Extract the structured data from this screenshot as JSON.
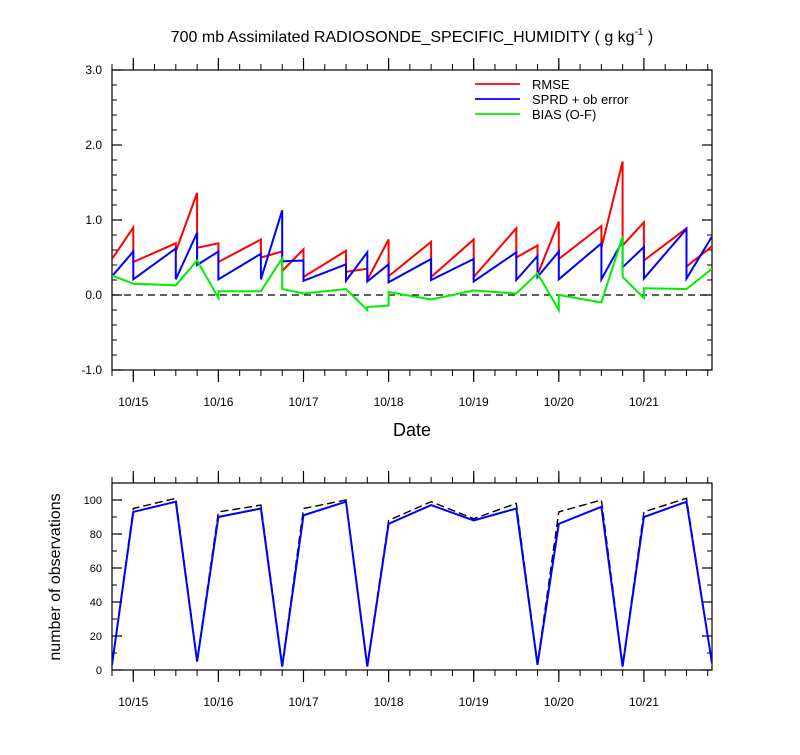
{
  "chart_data": [
    {
      "type": "line",
      "title": "700 mb Assimilated RADIOSONDE_SPECIFIC_HUMIDITY ( g kg",
      "title_sup": "-1",
      "title_end": " )",
      "xlabel": "Date",
      "ylabel": "",
      "xlim": [
        14.75,
        21.8
      ],
      "ylim": [
        -1.0,
        3.0
      ],
      "yticks": [
        -1.0,
        0.0,
        1.0,
        2.0,
        3.0
      ],
      "ytick_labels": [
        "-1.0",
        "0.0",
        "1.0",
        "2.0",
        "3.0"
      ],
      "xticks": [
        15,
        16,
        17,
        18,
        19,
        20,
        21
      ],
      "xtick_labels": [
        "10/15",
        "10/16",
        "10/17",
        "10/18",
        "10/19",
        "10/20",
        "10/21"
      ],
      "zero_line": {
        "y": 0.0,
        "style": "dashed"
      },
      "grid": false,
      "legend": {
        "position": "top-right"
      },
      "series": [
        {
          "name": "RMSE",
          "color": "#ff0000",
          "x": [
            14.75,
            15.0,
            15.0,
            15.5,
            15.5,
            15.75,
            15.75,
            16.0,
            16.0,
            16.5,
            16.5,
            16.75,
            16.75,
            17.0,
            17.0,
            17.5,
            17.5,
            17.75,
            17.75,
            18.0,
            18.0,
            18.5,
            18.5,
            19.0,
            19.0,
            19.5,
            19.5,
            19.75,
            19.75,
            20.0,
            20.0,
            20.5,
            20.5,
            20.75,
            20.75,
            21.0,
            21.0,
            21.5,
            21.5,
            21.8
          ],
          "y": [
            0.48,
            0.9,
            0.44,
            0.69,
            0.58,
            1.36,
            0.63,
            0.69,
            0.44,
            0.74,
            0.5,
            0.58,
            0.32,
            0.61,
            0.24,
            0.59,
            0.31,
            0.35,
            0.2,
            0.74,
            0.25,
            0.71,
            0.24,
            0.74,
            0.24,
            0.89,
            0.5,
            0.66,
            0.27,
            0.98,
            0.48,
            0.92,
            0.63,
            1.78,
            0.66,
            0.97,
            0.46,
            0.89,
            0.38,
            0.65
          ]
        },
        {
          "name": "SPRD + ob error",
          "color": "#0000ff",
          "x": [
            14.75,
            15.0,
            15.0,
            15.5,
            15.5,
            15.75,
            15.75,
            16.0,
            16.0,
            16.5,
            16.5,
            16.75,
            16.75,
            17.0,
            17.0,
            17.5,
            17.5,
            17.75,
            17.75,
            18.0,
            18.0,
            18.5,
            18.5,
            19.0,
            19.0,
            19.5,
            19.5,
            19.75,
            19.75,
            20.0,
            20.0,
            20.5,
            20.5,
            20.75,
            20.75,
            21.0,
            21.0,
            21.5,
            21.5,
            21.8
          ],
          "y": [
            0.25,
            0.58,
            0.21,
            0.62,
            0.21,
            0.83,
            0.4,
            0.58,
            0.21,
            0.55,
            0.21,
            1.13,
            0.45,
            0.46,
            0.19,
            0.41,
            0.19,
            0.57,
            0.18,
            0.41,
            0.17,
            0.48,
            0.2,
            0.48,
            0.18,
            0.57,
            0.2,
            0.52,
            0.24,
            0.58,
            0.21,
            0.69,
            0.21,
            0.72,
            0.37,
            0.64,
            0.22,
            0.88,
            0.22,
            0.78
          ]
        },
        {
          "name": "BIAS (O-F)",
          "color": "#00ee00",
          "x": [
            14.75,
            15.0,
            15.5,
            15.75,
            16.0,
            16.0,
            16.5,
            16.75,
            16.75,
            17.0,
            17.5,
            17.75,
            17.75,
            18.0,
            18.0,
            18.5,
            19.0,
            19.5,
            19.75,
            20.0,
            20.0,
            20.5,
            20.75,
            20.75,
            21.0,
            21.0,
            21.5,
            21.8
          ],
          "y": [
            0.26,
            0.15,
            0.13,
            0.46,
            -0.04,
            0.05,
            0.05,
            0.49,
            0.08,
            0.02,
            0.08,
            -0.2,
            -0.16,
            -0.14,
            0.04,
            -0.06,
            0.06,
            0.02,
            0.29,
            -0.2,
            0.0,
            -0.1,
            0.78,
            0.24,
            -0.04,
            0.09,
            0.08,
            0.35
          ]
        }
      ]
    },
    {
      "type": "line",
      "title": "",
      "xlabel": "",
      "ylabel": "number of observations",
      "xlim": [
        14.75,
        21.8
      ],
      "ylim": [
        0,
        110
      ],
      "yticks": [
        0,
        20,
        40,
        60,
        80,
        100
      ],
      "ytick_labels": [
        "0",
        "20",
        "40",
        "60",
        "80",
        "100"
      ],
      "xticks": [
        15,
        16,
        17,
        18,
        19,
        20,
        21
      ],
      "xtick_labels": [
        "10/15",
        "10/16",
        "10/17",
        "10/18",
        "10/19",
        "10/20",
        "10/21"
      ],
      "grid": false,
      "series": [
        {
          "name": "",
          "style": "dashed",
          "color": "#000000",
          "x": [
            14.75,
            15.0,
            15.5,
            15.75,
            16.0,
            16.5,
            16.75,
            17.0,
            17.5,
            17.75,
            18.0,
            18.5,
            19.0,
            19.5,
            19.75,
            20.0,
            20.5,
            20.75,
            21.0,
            21.5,
            21.8
          ],
          "y": [
            3,
            95,
            101,
            6,
            93,
            97,
            3,
            95,
            100,
            3,
            88,
            99,
            89,
            98,
            4,
            93,
            100,
            3,
            93,
            101,
            4
          ]
        },
        {
          "name": "",
          "style": "solid",
          "color": "#0000ff",
          "x": [
            14.75,
            15.0,
            15.5,
            15.75,
            16.0,
            16.5,
            16.75,
            17.0,
            17.5,
            17.75,
            18.0,
            18.5,
            19.0,
            19.5,
            19.75,
            20.0,
            20.5,
            20.75,
            21.0,
            21.5,
            21.8
          ],
          "y": [
            3,
            93,
            99,
            5,
            90,
            95,
            2,
            91,
            99,
            2,
            86,
            97,
            88,
            95,
            3,
            86,
            96,
            2,
            90,
            99,
            4
          ]
        }
      ]
    }
  ]
}
